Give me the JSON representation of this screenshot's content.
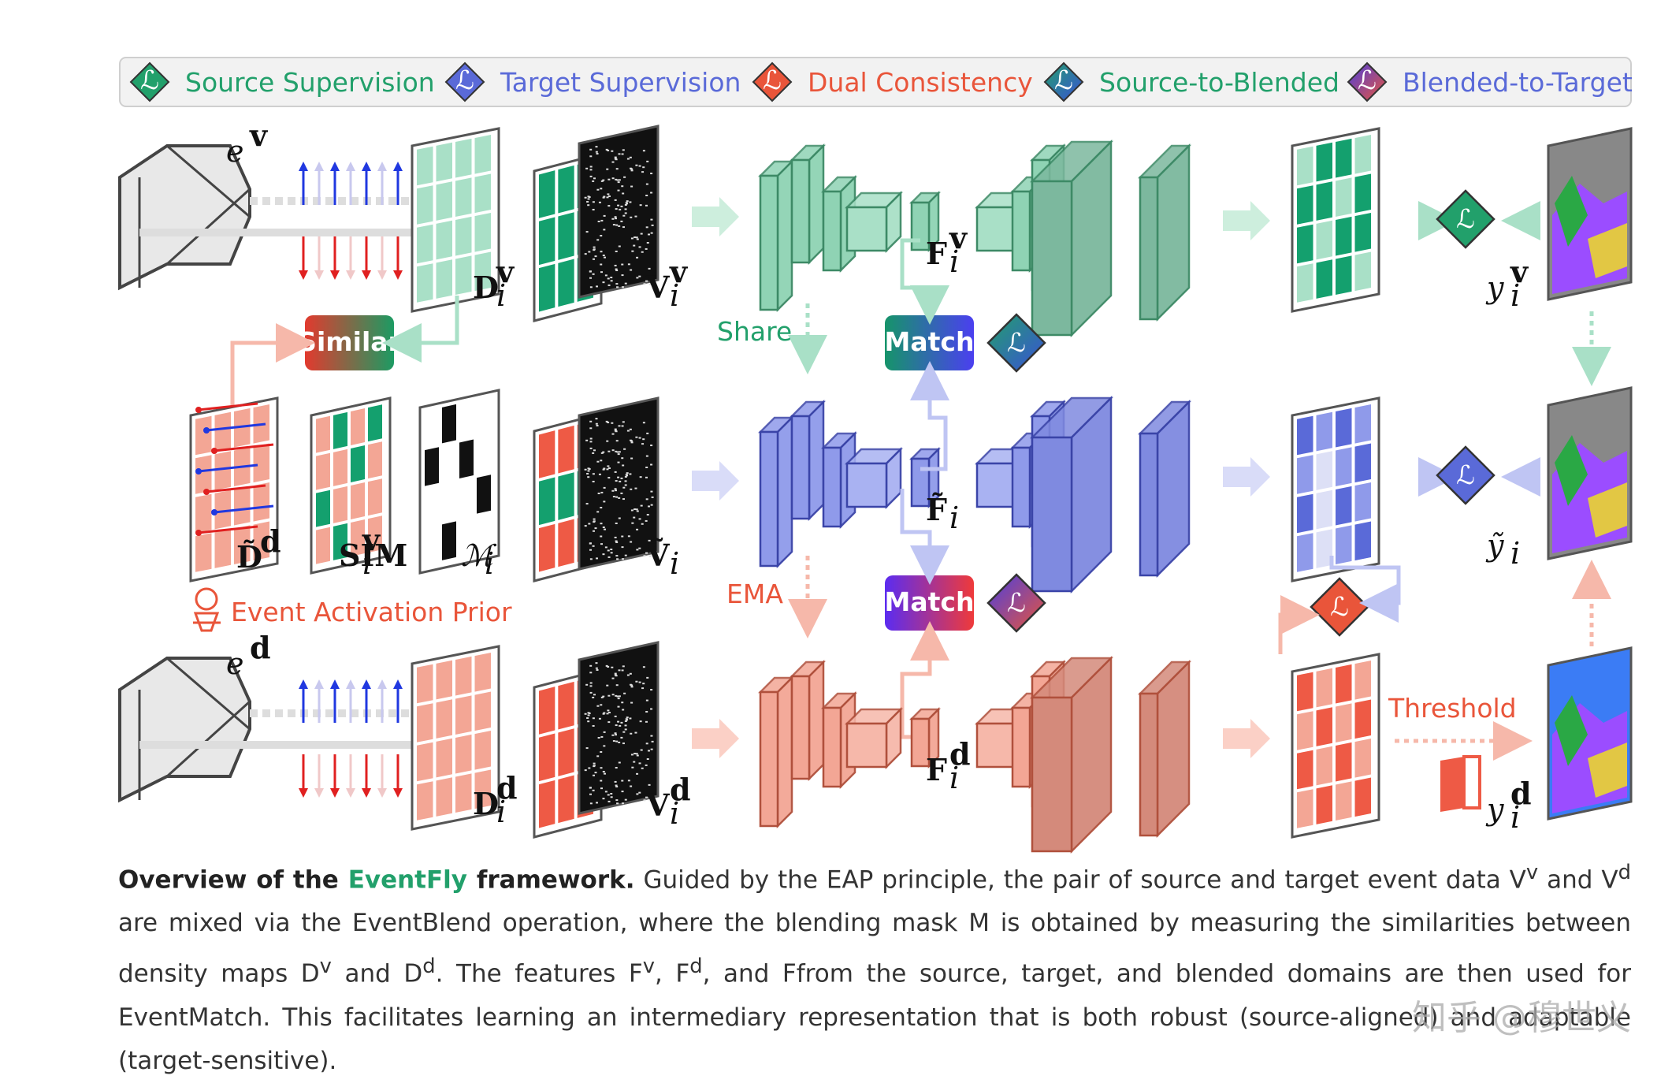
{
  "legend": {
    "items": [
      {
        "label": "Source Supervision",
        "color": "#22a06b",
        "icon": "loss-diamond-icon"
      },
      {
        "label": "Target Supervision",
        "color": "#5a6ad8",
        "icon": "loss-diamond-icon"
      },
      {
        "label": "Dual Consistency",
        "color": "#e9553a",
        "icon": "loss-diamond-icon"
      },
      {
        "label": "Source-to-Blended",
        "color": "#22a06b",
        "icon": "loss-diamond-icon"
      },
      {
        "label": "Blended-to-Target",
        "color": "#5a6ad8",
        "icon": "loss-diamond-icon"
      }
    ],
    "loss_symbol": "ℒ"
  },
  "labels": {
    "ev": "e",
    "ev_sup": "v",
    "ed": "e",
    "ed_sup": "d",
    "dv": "D",
    "dv_sup": "v",
    "dd": "D",
    "dd_sup": "d",
    "vv": "V",
    "vv_sup": "v",
    "vd": "V",
    "vd_sup": "d",
    "dtilde": "D̃",
    "dtilde_sup": "d",
    "sim": "SIM",
    "sim_sup": "v",
    "mask": "ℳ",
    "vtilde": "Ṽ",
    "fv": "F",
    "fv_sup": "v",
    "ftilde": "F̃",
    "fd": "F",
    "fd_sup": "d",
    "yv": "y",
    "yv_sup": "v",
    "ytilde": "ỹ",
    "yd": "y",
    "yd_sup": "d",
    "sub_i": "i"
  },
  "annotations": {
    "similar": "Similar",
    "share": "Share",
    "ema": "EMA",
    "match": "Match",
    "eap": "Event Activation Prior",
    "threshold": "Threshold"
  },
  "colors": {
    "green": "#22a06b",
    "blue": "#5a6ad8",
    "red": "#e9553a",
    "green_fill": "#8fd3b4",
    "blue_fill": "#8f9aea",
    "red_fill": "#f3a695"
  },
  "caption": {
    "lead_before": "Overview of the ",
    "lead_accent": "EventFly",
    "lead_after": " framework.",
    "p1": " Guided by the EAP principle, the pair of source and target event data V",
    "p1_sup": "v",
    "p2": " and V",
    "p2_sup": "d",
    "p3": " are mixed via the EventBlend operation, where the blending mask M is obtained by measuring the similarities between density maps D",
    "p3_sup": "v",
    "p4": " and D",
    "p4_sup": "d",
    "p5": ". The features F",
    "p5_sup": "v",
    "p6": ", F",
    "p6_sup": "d",
    "p7": ", and F",
    "p8": "from the source, target, and blended domains are then used for EventMatch. This facilitates learning an intermediary representation that is both robust (source-aligned) and adaptable (target-sensitive)."
  },
  "watermark": "知乎 @穆世义"
}
